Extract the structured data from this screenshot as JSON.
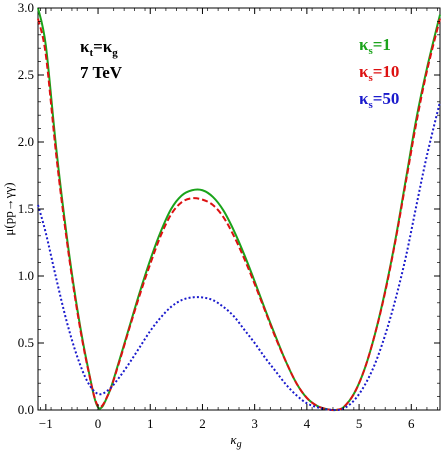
{
  "chart_data": {
    "type": "line",
    "xlabel": "κ_g",
    "ylabel": "μ(pp→γγ)",
    "xlim": [
      -1.15,
      6.55
    ],
    "ylim": [
      0,
      3.0
    ],
    "x_ticks": [
      -1,
      0,
      1,
      2,
      3,
      4,
      5,
      6
    ],
    "y_ticks": [
      0.0,
      0.5,
      1.0,
      1.5,
      2.0,
      2.5,
      3.0
    ],
    "y_tick_labels": [
      "0.0",
      "0.5",
      "1.0",
      "1.5",
      "2.0",
      "2.5",
      "3.0"
    ],
    "annotations": {
      "line1": "κ_t=κ_g",
      "line2": "7 TeV"
    },
    "legend_position": "top-right",
    "series": [
      {
        "name": "κ_s=1",
        "color": "#1aa31a",
        "style": "solid",
        "x": [
          -1.15,
          -1,
          -0.8,
          -0.6,
          -0.4,
          -0.2,
          0,
          0.2,
          0.4,
          0.6,
          0.8,
          1,
          1.2,
          1.4,
          1.6,
          1.8,
          2,
          2.2,
          2.4,
          2.6,
          2.8,
          3,
          3.2,
          3.4,
          3.6,
          3.8,
          4,
          4.2,
          4.4,
          4.55,
          4.7,
          4.9,
          5.1,
          5.3,
          5.5,
          5.7,
          5.9,
          6.1,
          6.3,
          6.55
        ],
        "y": [
          3.0,
          2.72,
          1.95,
          1.3,
          0.76,
          0.33,
          0.02,
          0.12,
          0.36,
          0.62,
          0.88,
          1.12,
          1.33,
          1.5,
          1.6,
          1.64,
          1.64,
          1.59,
          1.49,
          1.34,
          1.16,
          0.96,
          0.75,
          0.55,
          0.36,
          0.2,
          0.09,
          0.03,
          0.005,
          0.0,
          0.02,
          0.12,
          0.3,
          0.56,
          0.89,
          1.28,
          1.73,
          2.18,
          2.55,
          2.95
        ]
      },
      {
        "name": "κ_s=10",
        "color": "#dd1111",
        "style": "dashed",
        "x": [
          -1.15,
          -1,
          -0.8,
          -0.6,
          -0.4,
          -0.2,
          0,
          0.2,
          0.4,
          0.6,
          0.8,
          1,
          1.2,
          1.4,
          1.6,
          1.8,
          2,
          2.2,
          2.4,
          2.6,
          2.8,
          3,
          3.2,
          3.4,
          3.6,
          3.8,
          4,
          4.2,
          4.4,
          4.55,
          4.7,
          4.9,
          5.1,
          5.3,
          5.5,
          5.7,
          5.9,
          6.1,
          6.3,
          6.55
        ],
        "y": [
          2.92,
          2.65,
          1.9,
          1.27,
          0.74,
          0.32,
          0.03,
          0.12,
          0.35,
          0.61,
          0.86,
          1.09,
          1.3,
          1.46,
          1.55,
          1.58,
          1.57,
          1.53,
          1.44,
          1.3,
          1.13,
          0.94,
          0.74,
          0.54,
          0.36,
          0.2,
          0.09,
          0.03,
          0.005,
          0.0,
          0.02,
          0.12,
          0.3,
          0.56,
          0.88,
          1.27,
          1.71,
          2.15,
          2.53,
          2.92
        ]
      },
      {
        "name": "κ_s=50",
        "color": "#1a1acc",
        "style": "dotted",
        "x": [
          -1.15,
          -1,
          -0.8,
          -0.6,
          -0.4,
          -0.2,
          0,
          0.2,
          0.4,
          0.6,
          0.8,
          1,
          1.2,
          1.4,
          1.6,
          1.8,
          2,
          2.2,
          2.4,
          2.6,
          2.8,
          3,
          3.2,
          3.4,
          3.6,
          3.8,
          4,
          4.2,
          4.4,
          4.55,
          4.7,
          4.9,
          5.1,
          5.3,
          5.5,
          5.7,
          5.9,
          6.1,
          6.3,
          6.55
        ],
        "y": [
          1.53,
          1.32,
          0.98,
          0.66,
          0.4,
          0.21,
          0.12,
          0.15,
          0.24,
          0.35,
          0.47,
          0.59,
          0.69,
          0.77,
          0.82,
          0.84,
          0.84,
          0.82,
          0.77,
          0.7,
          0.6,
          0.5,
          0.39,
          0.29,
          0.19,
          0.11,
          0.05,
          0.02,
          0.004,
          0.0,
          0.01,
          0.07,
          0.18,
          0.34,
          0.56,
          0.83,
          1.15,
          1.53,
          1.9,
          2.3
        ]
      }
    ]
  }
}
